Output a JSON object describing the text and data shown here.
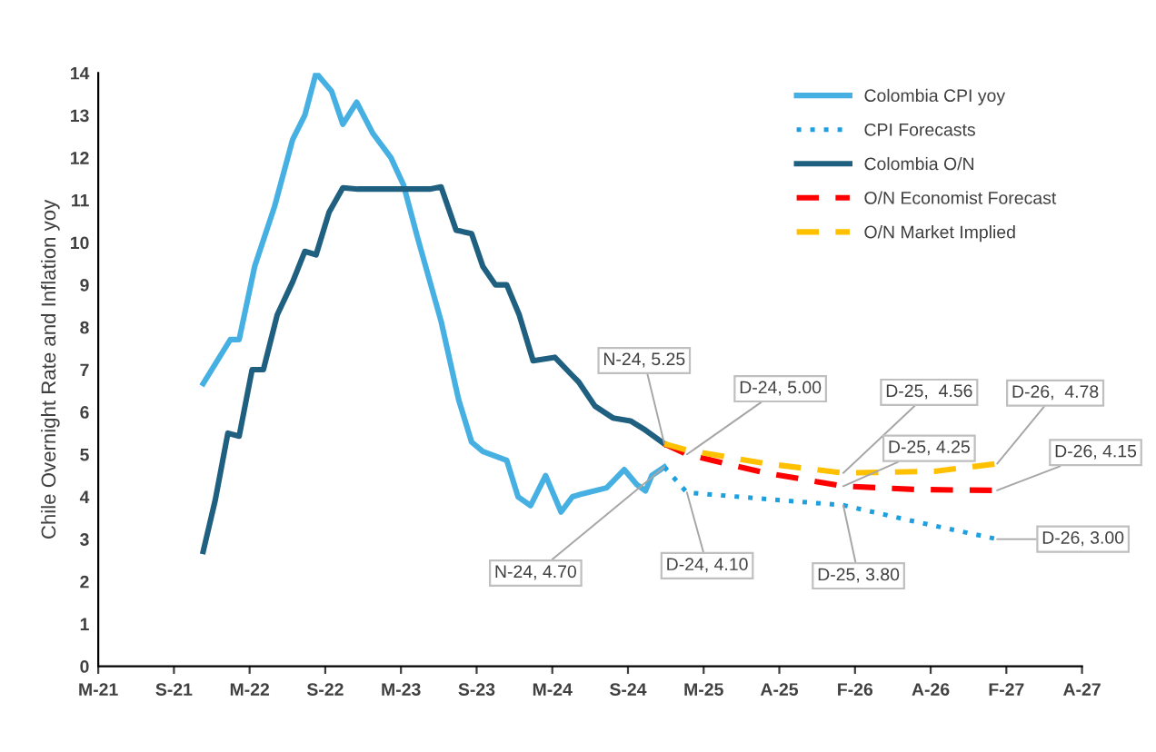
{
  "chart_data": {
    "type": "line",
    "ylabel": "Chile Overnight Rate and Inflation yoy",
    "xlim": [
      "2021-03-15",
      "2027-08-24"
    ],
    "xticks": [
      {
        "value": "2021-03-15",
        "label": "M-21"
      },
      {
        "value": "2021-09-12",
        "label": "S-21"
      },
      {
        "value": "2022-03-12",
        "label": "M-22"
      },
      {
        "value": "2022-09-09",
        "label": "S-22"
      },
      {
        "value": "2023-03-09",
        "label": "M-23"
      },
      {
        "value": "2023-09-06",
        "label": "S-23"
      },
      {
        "value": "2024-03-05",
        "label": "M-24"
      },
      {
        "value": "2024-09-02",
        "label": "S-24"
      },
      {
        "value": "2025-03-02",
        "label": "M-25"
      },
      {
        "value": "2025-08-30",
        "label": "A-25"
      },
      {
        "value": "2026-02-27",
        "label": "F-26"
      },
      {
        "value": "2026-08-27",
        "label": "A-26"
      },
      {
        "value": "2027-02-24",
        "label": "F-27"
      },
      {
        "value": "2027-08-24",
        "label": "A-27"
      }
    ],
    "ylim": [
      0,
      14
    ],
    "yticks": [
      0,
      1,
      2,
      3,
      4,
      5,
      6,
      7,
      8,
      9,
      10,
      11,
      12,
      13,
      14
    ],
    "legend": "top right",
    "series": [
      {
        "name": "Colombia CPI yoy",
        "color": "#45b0e1",
        "line_style": "solid",
        "x": [
          "2021-11-21",
          "2022-01-25",
          "2022-02-15",
          "2022-03-24",
          "2022-05-11",
          "2022-06-23",
          "2022-07-22",
          "2022-08-18",
          "2022-09-24",
          "2022-10-21",
          "2022-11-23",
          "2023-01-01",
          "2023-02-13",
          "2023-03-15",
          "2023-04-17",
          "2023-06-13",
          "2023-07-25",
          "2023-08-25",
          "2023-09-21",
          "2023-11-17",
          "2023-12-14",
          "2024-01-13",
          "2024-02-18",
          "2024-03-26",
          "2024-04-22",
          "2024-05-16",
          "2024-07-13",
          "2024-08-24",
          "2024-09-23",
          "2024-10-14",
          "2024-10-29",
          "2024-11-28"
        ],
        "values": [
          6.67,
          7.71,
          7.71,
          9.43,
          10.86,
          12.43,
          13.0,
          14.0,
          13.57,
          12.79,
          13.31,
          12.57,
          12.0,
          11.36,
          10.14,
          8.14,
          6.29,
          5.29,
          5.07,
          4.86,
          4.0,
          3.79,
          4.5,
          3.64,
          4.0,
          4.07,
          4.21,
          4.64,
          4.29,
          4.14,
          4.5,
          4.7
        ]
      },
      {
        "name": "CPI Forecasts",
        "color": "#1ea0e0",
        "line_style": "dotted",
        "x": [
          "2024-11-28",
          "2025-01-21",
          "2025-07-24",
          "2026-01-30",
          "2026-07-27",
          "2027-02-02"
        ],
        "values": [
          4.7,
          4.1,
          3.95,
          3.8,
          3.4,
          3.0
        ]
      },
      {
        "name": "Colombia O/N",
        "color": "#1f5f7f",
        "line_style": "solid",
        "x": [
          "2021-11-21",
          "2021-12-20",
          "2022-01-19",
          "2022-02-15",
          "2022-03-18",
          "2022-04-14",
          "2022-05-17",
          "2022-06-23",
          "2022-07-22",
          "2022-08-18",
          "2022-09-18",
          "2022-10-21",
          "2022-11-26",
          "2023-05-17",
          "2023-06-13",
          "2023-07-19",
          "2023-08-25",
          "2023-09-21",
          "2023-10-21",
          "2023-11-17",
          "2023-12-17",
          "2024-01-19",
          "2024-03-11",
          "2024-04-22",
          "2024-05-07",
          "2024-06-15",
          "2024-07-28",
          "2024-09-08",
          "2024-10-14",
          "2024-11-28"
        ],
        "values": [
          2.71,
          3.93,
          5.5,
          5.43,
          7.0,
          7.0,
          8.29,
          9.07,
          9.79,
          9.71,
          10.71,
          11.29,
          11.26,
          11.26,
          11.31,
          10.29,
          10.21,
          9.43,
          9.0,
          9.0,
          8.29,
          7.21,
          7.29,
          6.86,
          6.71,
          6.14,
          5.86,
          5.79,
          5.57,
          5.25
        ]
      },
      {
        "name": "O/N Economist Forecast",
        "color": "#ff0000",
        "line_style": "dashed",
        "x": [
          "2024-11-28",
          "2025-01-21",
          "2025-07-24",
          "2026-01-30",
          "2026-07-27",
          "2027-02-02"
        ],
        "values": [
          5.25,
          5.0,
          4.57,
          4.25,
          4.17,
          4.15
        ]
      },
      {
        "name": "O/N Market Implied",
        "color": "#ffc000",
        "line_style": "dashed",
        "x": [
          "2024-11-28",
          "2025-01-21",
          "2025-07-24",
          "2026-01-30",
          "2026-09-05",
          "2027-02-02"
        ],
        "values": [
          5.25,
          5.1,
          4.79,
          4.56,
          4.6,
          4.78
        ]
      }
    ],
    "annotations": [
      {
        "text": "N-24, 5.25",
        "x": "2024-11-28",
        "y": 5.25
      },
      {
        "text": "D-24, 5.00",
        "x": "2025-01-21",
        "y": 5.0
      },
      {
        "text": "D-25,  4.56",
        "x": "2026-01-30",
        "y": 4.56
      },
      {
        "text": "D-25, 4.25",
        "x": "2026-01-30",
        "y": 4.25
      },
      {
        "text": "D-26,  4.78",
        "x": "2027-02-02",
        "y": 4.78
      },
      {
        "text": "D-26, 4.15",
        "x": "2027-02-02",
        "y": 4.15
      },
      {
        "text": "N-24, 4.70",
        "x": "2024-11-28",
        "y": 4.7
      },
      {
        "text": "D-24, 4.10",
        "x": "2025-01-21",
        "y": 4.1
      },
      {
        "text": "D-25, 3.80",
        "x": "2026-01-30",
        "y": 3.8
      },
      {
        "text": "D-26, 3.00",
        "x": "2027-02-02",
        "y": 3.0
      }
    ]
  }
}
